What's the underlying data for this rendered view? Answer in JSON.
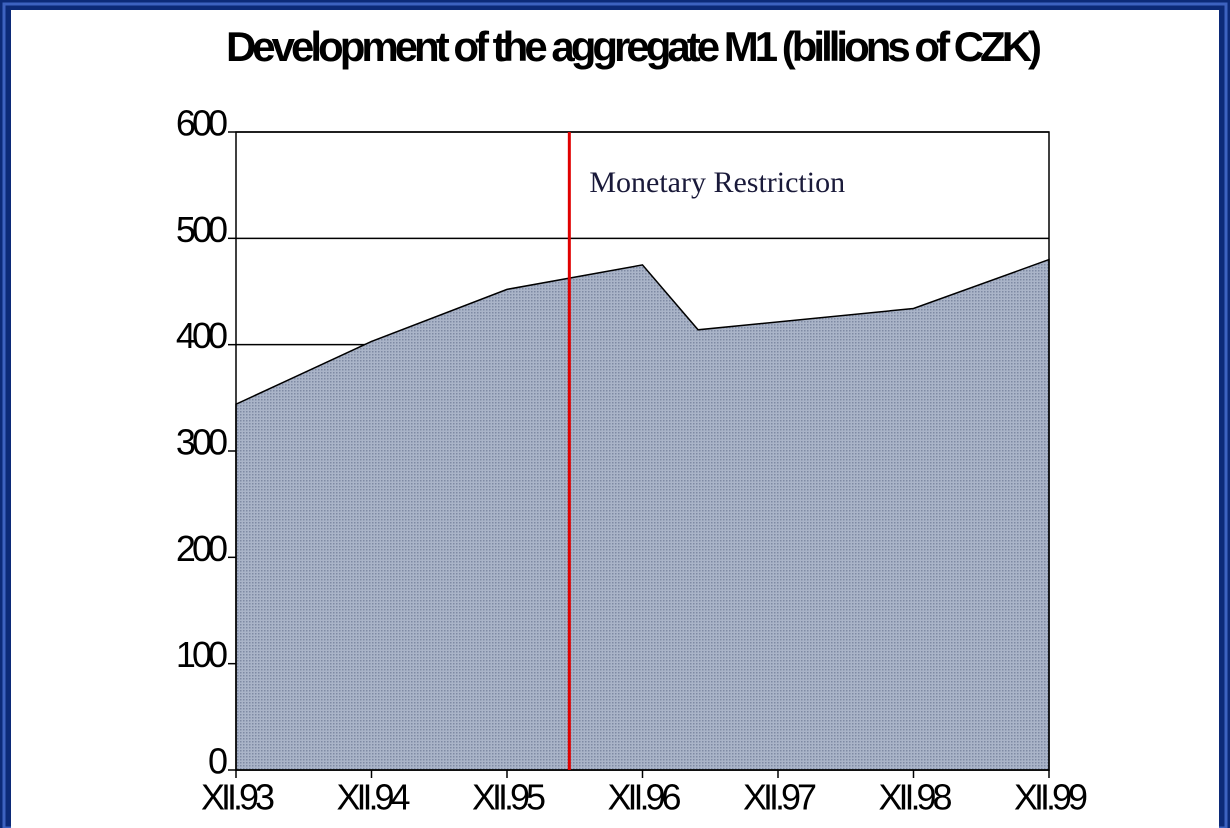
{
  "chart_data": {
    "type": "area",
    "title": "Development of the aggregate M1 (billions of CZK)",
    "x": [
      1993.92,
      1994.92,
      1995.92,
      1996.92,
      1997.33,
      1998.92,
      1999.92
    ],
    "values": [
      344,
      403,
      452,
      475,
      414,
      434,
      480
    ],
    "color": "#aab4c8",
    "xlim": [
      1993.92,
      1999.92
    ],
    "xticks": [
      {
        "value": 1993.92,
        "label": "XII.93"
      },
      {
        "value": 1994.92,
        "label": "XII.94"
      },
      {
        "value": 1995.92,
        "label": "XII.95"
      },
      {
        "value": 1996.92,
        "label": "XII.96"
      },
      {
        "value": 1997.92,
        "label": "XII.97"
      },
      {
        "value": 1998.92,
        "label": "XII.98"
      },
      {
        "value": 1999.92,
        "label": "XII.99"
      }
    ],
    "ylim": [
      0,
      600
    ],
    "yticks": [
      0,
      100,
      200,
      300,
      400,
      500,
      600
    ],
    "grid": true,
    "annotation": {
      "text": "Monetary Restriction",
      "x": 1996.38,
      "color": "#e00000"
    }
  }
}
